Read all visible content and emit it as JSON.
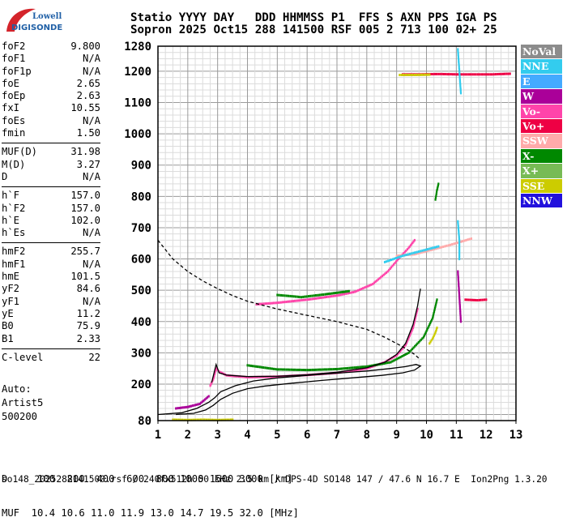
{
  "logo": {
    "line1": "Lowell",
    "line2": "DIGISONDE",
    "accent": "#d4242b",
    "text_color": "#1f5fa6"
  },
  "header": {
    "line1": "Statio YYYY DAY   DDD HHMMSS P1  FFS S AXN PPS IGA PS",
    "line2": "Sopron 2025 Oct15 288 141500 RSF 005 2 713 100 02+ 25"
  },
  "params": {
    "group1": [
      {
        "k": "foF2",
        "v": "9.800"
      },
      {
        "k": "foF1",
        "v": "N/A"
      },
      {
        "k": "foF1p",
        "v": "N/A"
      },
      {
        "k": "foE",
        "v": "2.65"
      },
      {
        "k": "foEp",
        "v": "2.63"
      },
      {
        "k": "fxI",
        "v": "10.55"
      },
      {
        "k": "foEs",
        "v": "N/A"
      },
      {
        "k": "fmin",
        "v": "1.50"
      }
    ],
    "group2": [
      {
        "k": "MUF(D)",
        "v": "31.98"
      },
      {
        "k": "M(D)",
        "v": "3.27"
      },
      {
        "k": "D",
        "v": "N/A"
      }
    ],
    "group3": [
      {
        "k": "h`F",
        "v": "157.0"
      },
      {
        "k": "h`F2",
        "v": "157.0"
      },
      {
        "k": "h`E",
        "v": "102.0"
      },
      {
        "k": "h`Es",
        "v": "N/A"
      }
    ],
    "group4": [
      {
        "k": "hmF2",
        "v": "255.7"
      },
      {
        "k": "hmF1",
        "v": "N/A"
      },
      {
        "k": "hmE",
        "v": "101.5"
      },
      {
        "k": "yF2",
        "v": "84.6"
      },
      {
        "k": "yF1",
        "v": "N/A"
      },
      {
        "k": "yE",
        "v": "11.2"
      },
      {
        "k": "B0",
        "v": "75.9"
      },
      {
        "k": "B1",
        "v": "2.33"
      }
    ],
    "group5": [
      {
        "k": "C-level",
        "v": "22"
      }
    ]
  },
  "auto": {
    "line1": "Auto:",
    "line2": "Artist5",
    "line3": "500200"
  },
  "legend": [
    {
      "label": "NoVal",
      "color": "#8c8c8c"
    },
    {
      "label": "NNE",
      "color": "#33ccee"
    },
    {
      "label": "E",
      "color": "#44aaff"
    },
    {
      "label": "W",
      "color": "#aa0099"
    },
    {
      "label": "Vo-",
      "color": "#ff44aa"
    },
    {
      "label": "Vo+",
      "color": "#ee0044"
    },
    {
      "label": "SSW",
      "color": "#ffaaaa"
    },
    {
      "label": "X-",
      "color": "#008800"
    },
    {
      "label": "X+",
      "color": "#77bb55"
    },
    {
      "label": "SSE",
      "color": "#cccc00"
    },
    {
      "label": "NNW",
      "color": "#2211dd"
    }
  ],
  "bottom": {
    "line1": "D     100  200  400  600  800 1000 1500 3000 [km]",
    "line2": "MUF  10.4 10.6 11.0 11.9 13.0 14.7 19.5 32.0 [MHz]"
  },
  "footer": "so148_2025288141500.rsf / 240fx512h 50 kHz 2.5 km / DPS-4D SO148 147 / 47.6 N 16.7 E  Ion2Png 1.3.20",
  "chart_data": {
    "type": "scatter",
    "xlim": [
      1,
      13
    ],
    "ylim": [
      80,
      1280
    ],
    "x_ticks": [
      "1",
      "2",
      "3",
      "4",
      "5",
      "6",
      "7",
      "8",
      "9",
      "10",
      "11",
      "12",
      "13"
    ],
    "y_ticks": [
      "80",
      "200",
      "300",
      "400",
      "500",
      "600",
      "700",
      "800",
      "900",
      "1000",
      "1100",
      "1200",
      "1280"
    ],
    "grid": true,
    "legend_position": "right",
    "series": [
      {
        "color": "#000000",
        "style": "solid",
        "points": [
          [
            1.0,
            100
          ],
          [
            1.8,
            106
          ],
          [
            2.3,
            120
          ],
          [
            2.7,
            140
          ],
          [
            2.9,
            155
          ],
          [
            3.1,
            175
          ],
          [
            3.6,
            195
          ],
          [
            4.2,
            210
          ],
          [
            5,
            220
          ],
          [
            6,
            228
          ],
          [
            7,
            235
          ],
          [
            8,
            242
          ],
          [
            8.8,
            250
          ],
          [
            9.3,
            256
          ],
          [
            9.65,
            263
          ],
          [
            9.8,
            258
          ],
          [
            9.6,
            245
          ],
          [
            9.2,
            236
          ],
          [
            8.5,
            228
          ],
          [
            7.5,
            220
          ],
          [
            6.5,
            212
          ],
          [
            5.5,
            203
          ],
          [
            4.6,
            194
          ],
          [
            4.0,
            185
          ],
          [
            3.5,
            170
          ],
          [
            3.1,
            150
          ],
          [
            2.85,
            130
          ],
          [
            2.6,
            115
          ],
          [
            2.2,
            104
          ],
          [
            1.6,
            100
          ]
        ]
      },
      {
        "color": "#000000",
        "style": "solid",
        "points": [
          [
            2.8,
            205
          ],
          [
            2.95,
            263
          ],
          [
            3.05,
            236
          ],
          [
            3.3,
            229
          ],
          [
            4,
            224
          ],
          [
            5,
            225
          ],
          [
            6,
            230
          ],
          [
            7,
            238
          ],
          [
            8,
            252
          ],
          [
            8.6,
            270
          ],
          [
            9.0,
            295
          ],
          [
            9.3,
            330
          ],
          [
            9.55,
            390
          ],
          [
            9.7,
            450
          ],
          [
            9.8,
            505
          ]
        ]
      },
      {
        "color": "#000000",
        "style": "dashed",
        "points": [
          [
            1.0,
            660
          ],
          [
            1.5,
            600
          ],
          [
            2,
            560
          ],
          [
            2.5,
            530
          ],
          [
            3,
            505
          ],
          [
            3.5,
            483
          ],
          [
            4,
            465
          ],
          [
            5,
            440
          ],
          [
            6,
            420
          ],
          [
            7,
            400
          ],
          [
            8,
            375
          ],
          [
            8.6,
            350
          ],
          [
            9.2,
            320
          ],
          [
            9.6,
            295
          ],
          [
            9.8,
            278
          ]
        ]
      }
    ],
    "traces": [
      {
        "color": "#ff44aa",
        "points": [
          [
            2.75,
            195
          ],
          [
            2.85,
            215
          ],
          [
            2.95,
            250
          ],
          [
            3.05,
            240
          ],
          [
            3.3,
            228
          ],
          [
            4,
            222
          ],
          [
            5,
            224
          ],
          [
            6,
            229
          ],
          [
            7,
            236
          ],
          [
            8,
            250
          ],
          [
            8.6,
            270
          ],
          [
            9.0,
            292
          ],
          [
            9.3,
            325
          ],
          [
            9.55,
            380
          ],
          [
            9.7,
            440
          ]
        ]
      },
      {
        "color": "#aa0099",
        "points": [
          [
            1.6,
            120
          ],
          [
            2.0,
            125
          ],
          [
            2.4,
            135
          ],
          [
            2.7,
            160
          ]
        ]
      },
      {
        "color": "#008800",
        "points": [
          [
            4.0,
            260
          ],
          [
            5,
            247
          ],
          [
            6,
            245
          ],
          [
            7,
            248
          ],
          [
            8,
            256
          ],
          [
            8.8,
            270
          ],
          [
            9.4,
            300
          ],
          [
            9.9,
            350
          ],
          [
            10.2,
            410
          ],
          [
            10.35,
            470
          ]
        ]
      },
      {
        "color": "#ff44aa",
        "points": [
          [
            4.3,
            455
          ],
          [
            5,
            460
          ],
          [
            6,
            470
          ],
          [
            7,
            483
          ],
          [
            7.6,
            495
          ],
          [
            8.2,
            520
          ],
          [
            8.7,
            560
          ],
          [
            9.1,
            605
          ],
          [
            9.4,
            635
          ],
          [
            9.6,
            660
          ]
        ]
      },
      {
        "color": "#008800",
        "points": [
          [
            5.0,
            485
          ],
          [
            5.8,
            478
          ],
          [
            6.6,
            487
          ],
          [
            7.4,
            497
          ]
        ]
      },
      {
        "color": "#ffaaaa",
        "points": [
          [
            9.0,
            610
          ],
          [
            9.6,
            615
          ],
          [
            10.2,
            630
          ],
          [
            10.8,
            645
          ],
          [
            11.5,
            665
          ]
        ]
      },
      {
        "color": "#33ccee",
        "points": [
          [
            8.6,
            590
          ],
          [
            9.2,
            610
          ],
          [
            9.8,
            625
          ],
          [
            10.4,
            640
          ]
        ]
      },
      {
        "color": "#cccc00",
        "points": [
          [
            10.1,
            330
          ],
          [
            10.2,
            345
          ],
          [
            10.3,
            365
          ],
          [
            10.35,
            380
          ]
        ]
      },
      {
        "color": "#cccc00",
        "points": [
          [
            1.5,
            83
          ],
          [
            2.0,
            82
          ],
          [
            2.5,
            83
          ],
          [
            3.0,
            82
          ],
          [
            3.5,
            83
          ]
        ]
      },
      {
        "color": "#ee0044",
        "points": [
          [
            9.2,
            1190
          ],
          [
            9.8,
            1190
          ],
          [
            10.4,
            1191
          ],
          [
            11.0,
            1190
          ],
          [
            11.6,
            1190
          ],
          [
            12.2,
            1190
          ],
          [
            12.8,
            1192
          ]
        ]
      },
      {
        "color": "#cccc00",
        "points": [
          [
            9.1,
            1188
          ],
          [
            9.6,
            1188
          ],
          [
            10.1,
            1189
          ]
        ]
      },
      {
        "color": "#33ccee",
        "points": [
          [
            11.05,
            1270
          ],
          [
            11.1,
            1200
          ],
          [
            11.15,
            1130
          ]
        ]
      },
      {
        "color": "#aa0099",
        "points": [
          [
            11.05,
            560
          ],
          [
            11.1,
            480
          ],
          [
            11.15,
            400
          ]
        ]
      },
      {
        "color": "#33ccee",
        "points": [
          [
            11.05,
            720
          ],
          [
            11.1,
            660
          ],
          [
            11.1,
            600
          ]
        ]
      },
      {
        "color": "#ee0044",
        "points": [
          [
            11.3,
            470
          ],
          [
            11.7,
            468
          ],
          [
            12.0,
            470
          ]
        ]
      },
      {
        "color": "#008800",
        "points": [
          [
            10.3,
            790
          ],
          [
            10.35,
            820
          ],
          [
            10.4,
            840
          ]
        ]
      }
    ]
  }
}
